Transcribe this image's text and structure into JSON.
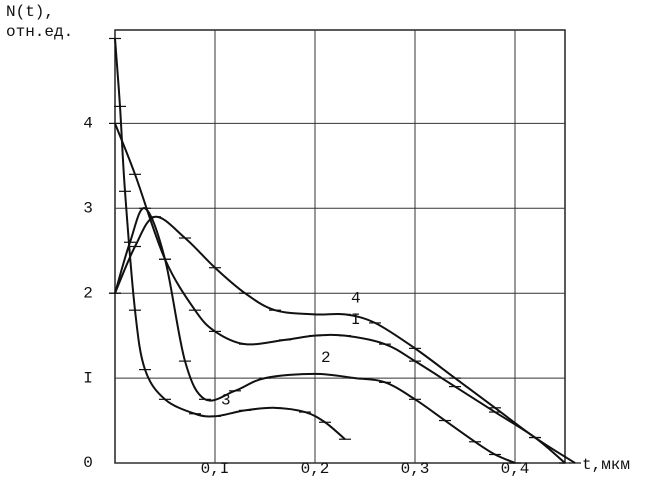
{
  "chart_data": {
    "type": "line",
    "y_label_line1": "N(t),",
    "y_label_line2": "отн.ед.",
    "x_label": "t,мкм",
    "xlim": [
      0,
      0.45
    ],
    "ylim": [
      0,
      5.1
    ],
    "xticks": [
      {
        "value": 0.1,
        "label": "0,I"
      },
      {
        "value": 0.2,
        "label": "0,2"
      },
      {
        "value": 0.3,
        "label": "0,3"
      },
      {
        "value": 0.4,
        "label": "0,4"
      }
    ],
    "yticks": [
      0,
      {
        "value": 1,
        "label": "I"
      },
      2,
      3,
      4
    ],
    "grid": true,
    "color": "#111111",
    "series": [
      {
        "name": "I",
        "x": [
          0,
          0.02,
          0.05,
          0.08,
          0.1,
          0.13,
          0.17,
          0.2,
          0.23,
          0.27,
          0.3,
          0.34,
          0.38,
          0.42,
          0.45
        ],
        "values": [
          4.0,
          3.4,
          2.4,
          1.8,
          1.55,
          1.4,
          1.45,
          1.5,
          1.5,
          1.4,
          1.2,
          0.9,
          0.6,
          0.3,
          0
        ]
      },
      {
        "name": "2",
        "x": [
          0,
          0.015,
          0.03,
          0.05,
          0.07,
          0.09,
          0.12,
          0.15,
          0.2,
          0.24,
          0.27,
          0.3,
          0.33,
          0.36,
          0.38,
          0.4
        ],
        "values": [
          2.0,
          2.6,
          3.0,
          2.4,
          1.2,
          0.75,
          0.85,
          1.0,
          1.05,
          1.0,
          0.95,
          0.75,
          0.5,
          0.25,
          0.1,
          0
        ]
      },
      {
        "name": "3",
        "x": [
          0,
          0.005,
          0.01,
          0.02,
          0.03,
          0.05,
          0.08,
          0.1,
          0.13,
          0.16,
          0.19,
          0.21,
          0.23
        ],
        "values": [
          5.0,
          4.2,
          3.2,
          1.8,
          1.1,
          0.75,
          0.58,
          0.55,
          0.62,
          0.65,
          0.6,
          0.48,
          0.28
        ]
      },
      {
        "name": "4",
        "x": [
          0,
          0.02,
          0.04,
          0.07,
          0.1,
          0.13,
          0.16,
          0.2,
          0.23,
          0.26,
          0.3,
          0.34,
          0.38,
          0.42,
          0.46
        ],
        "values": [
          2.0,
          2.55,
          2.9,
          2.65,
          2.3,
          2.0,
          1.8,
          1.75,
          1.75,
          1.65,
          1.35,
          1.0,
          0.65,
          0.3,
          0
        ]
      }
    ]
  }
}
